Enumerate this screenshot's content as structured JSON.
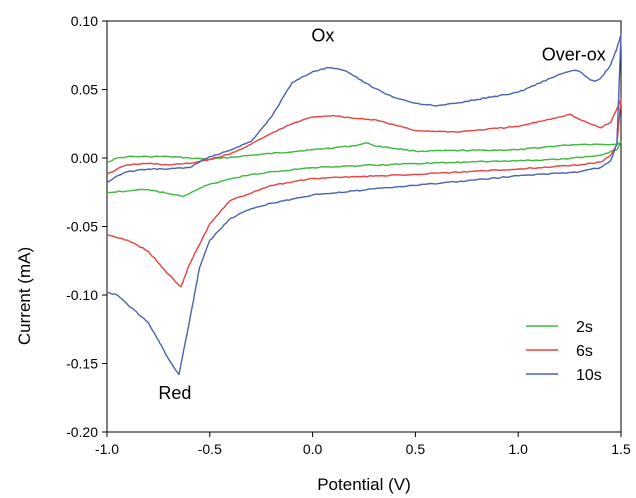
{
  "chart_data": {
    "type": "line",
    "xlabel": "Potential (V)",
    "ylabel": "Current (mA)",
    "xlim": [
      -1.0,
      1.5
    ],
    "ylim": [
      -0.2,
      0.1
    ],
    "xticks": [
      "-1.0",
      "-0.5",
      "0.0",
      "0.5",
      "1.0",
      "1.5"
    ],
    "xtick_values": [
      -1.0,
      -0.5,
      0.0,
      0.5,
      1.0,
      1.5
    ],
    "yticks": [
      "0.10",
      "0.05",
      "0.00",
      "-0.05",
      "-0.10",
      "-0.15",
      "-0.20"
    ],
    "ytick_values": [
      0.1,
      0.05,
      0.0,
      -0.05,
      -0.1,
      -0.15,
      -0.2
    ],
    "grid": false,
    "legend_position": "bottom-right",
    "annotations": [
      {
        "text": "Ox",
        "x": 0.05,
        "y": 0.085
      },
      {
        "text": "Over-ox",
        "x": 1.27,
        "y": 0.071
      },
      {
        "text": "Red",
        "x": -0.67,
        "y": -0.176
      }
    ],
    "series": [
      {
        "name": "2s",
        "color": "#3cb83c",
        "x": [
          -1.0,
          -0.95,
          -0.9,
          -0.8,
          -0.7,
          -0.6,
          -0.5,
          -0.3,
          0.0,
          0.2,
          0.27,
          0.3,
          0.5,
          1.0,
          1.2,
          1.3,
          1.4,
          1.48,
          1.5,
          1.48,
          1.4,
          1.2,
          1.0,
          0.5,
          0.0,
          -0.3,
          -0.5,
          -0.6,
          -0.63,
          -0.7,
          -0.8,
          -0.9,
          -1.0
        ],
        "y": [
          -0.003,
          0.0,
          0.001,
          0.001,
          0.001,
          0.0,
          -0.001,
          0.002,
          0.006,
          0.009,
          0.011,
          0.009,
          0.005,
          0.006,
          0.009,
          0.01,
          0.01,
          0.01,
          0.012,
          0.006,
          0.002,
          -0.001,
          -0.002,
          -0.004,
          -0.007,
          -0.012,
          -0.019,
          -0.026,
          -0.028,
          -0.026,
          -0.023,
          -0.024,
          -0.025
        ]
      },
      {
        "name": "6s",
        "color": "#e8423f",
        "x": [
          -1.0,
          -0.95,
          -0.9,
          -0.8,
          -0.7,
          -0.6,
          -0.5,
          -0.4,
          -0.3,
          -0.2,
          -0.1,
          0.0,
          0.1,
          0.2,
          0.3,
          0.4,
          0.5,
          0.7,
          1.0,
          1.2,
          1.25,
          1.3,
          1.35,
          1.4,
          1.45,
          1.48,
          1.5,
          1.48,
          1.45,
          1.4,
          1.3,
          1.0,
          0.5,
          0.0,
          -0.2,
          -0.4,
          -0.5,
          -0.6,
          -0.64,
          -0.7,
          -0.8,
          -0.9,
          -1.0
        ],
        "y": [
          -0.012,
          -0.008,
          -0.005,
          -0.004,
          -0.005,
          -0.004,
          -0.001,
          0.003,
          0.01,
          0.018,
          0.025,
          0.03,
          0.031,
          0.029,
          0.028,
          0.024,
          0.02,
          0.019,
          0.023,
          0.03,
          0.032,
          0.028,
          0.025,
          0.022,
          0.026,
          0.036,
          0.043,
          0.01,
          0.002,
          -0.003,
          -0.005,
          -0.008,
          -0.012,
          -0.015,
          -0.02,
          -0.031,
          -0.048,
          -0.078,
          -0.094,
          -0.085,
          -0.068,
          -0.06,
          -0.056
        ]
      },
      {
        "name": "10s",
        "color": "#4a62b0",
        "x": [
          -1.0,
          -0.95,
          -0.9,
          -0.8,
          -0.7,
          -0.6,
          -0.5,
          -0.45,
          -0.3,
          -0.2,
          -0.1,
          0.0,
          0.08,
          0.15,
          0.2,
          0.3,
          0.4,
          0.5,
          0.6,
          0.7,
          1.0,
          1.2,
          1.27,
          1.3,
          1.35,
          1.37,
          1.4,
          1.45,
          1.48,
          1.5,
          1.48,
          1.45,
          1.4,
          1.3,
          1.0,
          0.5,
          0.2,
          0.0,
          -0.1,
          -0.2,
          -0.3,
          -0.4,
          -0.5,
          -0.55,
          -0.6,
          -0.65,
          -0.7,
          -0.75,
          -0.8,
          -0.9,
          -0.95,
          -1.0
        ],
        "y": [
          -0.018,
          -0.013,
          -0.01,
          -0.008,
          -0.008,
          -0.007,
          0.001,
          0.003,
          0.012,
          0.03,
          0.055,
          0.063,
          0.066,
          0.064,
          0.06,
          0.051,
          0.044,
          0.04,
          0.038,
          0.04,
          0.048,
          0.061,
          0.064,
          0.063,
          0.057,
          0.056,
          0.058,
          0.068,
          0.08,
          0.09,
          0.01,
          -0.002,
          -0.007,
          -0.01,
          -0.013,
          -0.02,
          -0.024,
          -0.027,
          -0.03,
          -0.033,
          -0.037,
          -0.044,
          -0.06,
          -0.08,
          -0.12,
          -0.158,
          -0.147,
          -0.133,
          -0.12,
          -0.107,
          -0.1,
          -0.098
        ]
      }
    ]
  }
}
